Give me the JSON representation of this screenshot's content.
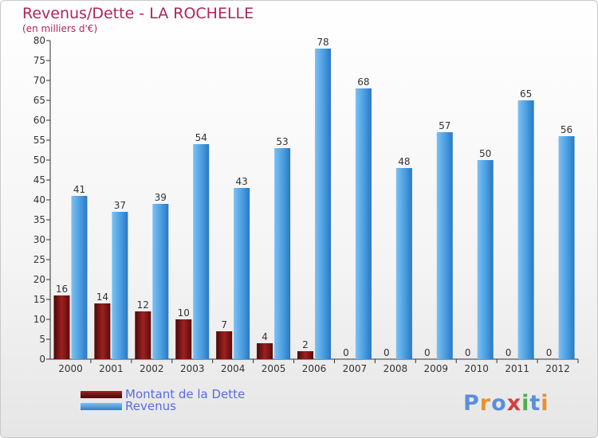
{
  "chart_data": {
    "type": "bar",
    "title": "Revenus/Dette - LA ROCHELLE",
    "subtitle": "(en milliers d'€)",
    "categories": [
      "2000",
      "2001",
      "2002",
      "2003",
      "2004",
      "2005",
      "2006",
      "2007",
      "2008",
      "2009",
      "2010",
      "2011",
      "2012"
    ],
    "series": [
      {
        "name": "Montant de la Dette",
        "color": "#7a1414",
        "values": [
          16,
          14,
          12,
          10,
          7,
          4,
          2,
          0,
          0,
          0,
          0,
          0,
          0
        ]
      },
      {
        "name": "Revenus",
        "color": "#4f9fe0",
        "values": [
          41,
          37,
          39,
          54,
          43,
          53,
          78,
          68,
          48,
          57,
          50,
          65,
          56
        ]
      }
    ],
    "ylim": [
      0,
      80
    ],
    "yticks": [
      0,
      5,
      10,
      15,
      20,
      25,
      30,
      35,
      40,
      45,
      50,
      55,
      60,
      65,
      70,
      75,
      80
    ],
    "grid": false,
    "legend_position": "bottom-left"
  },
  "logo": {
    "text": "Proxiti",
    "letter_colors": [
      "#5a8fd8",
      "#e89030",
      "#5a8fd8",
      "#d04040",
      "#4fae4f",
      "#5a8fd8",
      "#e89030"
    ]
  }
}
